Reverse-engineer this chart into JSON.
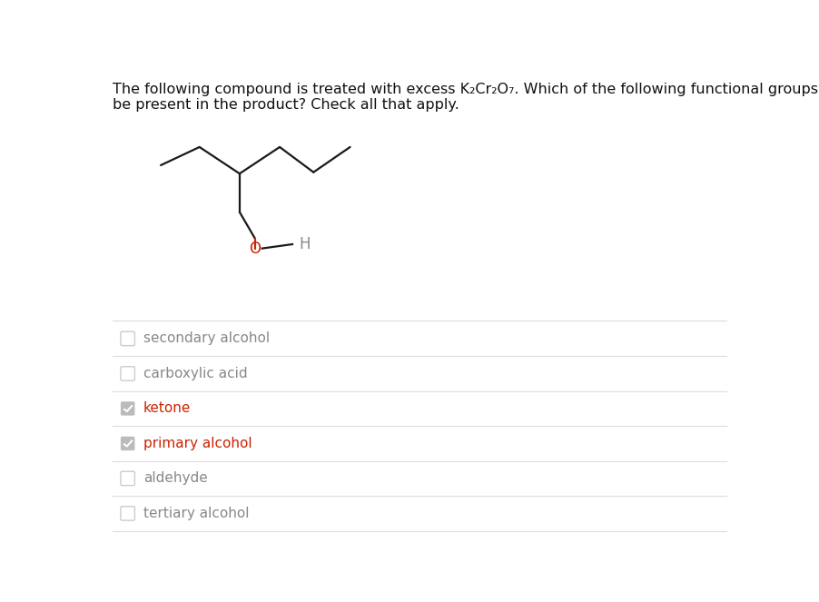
{
  "options": [
    {
      "label": "secondary alcohol",
      "checked": false,
      "color": "#888888"
    },
    {
      "label": "carboxylic acid",
      "checked": false,
      "color": "#888888"
    },
    {
      "label": "ketone",
      "checked": true,
      "color": "#cc2200"
    },
    {
      "label": "primary alcohol",
      "checked": true,
      "color": "#cc2200"
    },
    {
      "label": "aldehyde",
      "checked": false,
      "color": "#888888"
    },
    {
      "label": "tertiary alcohol",
      "checked": false,
      "color": "#888888"
    }
  ],
  "bg_color": "#ffffff",
  "line_color": "#1a1a1a",
  "oxygen_color": "#cc2200",
  "h_color": "#888888",
  "divider_color": "#dddddd",
  "checkbox_unchecked_border": "#cccccc",
  "checkbox_unchecked_face": "#ffffff",
  "checkbox_checked_color": "#bbbbbb",
  "label_fontsize": 11,
  "title_fontsize": 11.5
}
